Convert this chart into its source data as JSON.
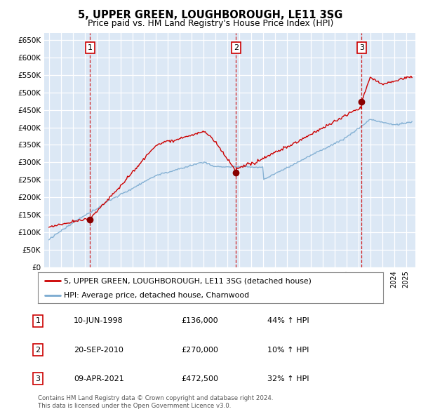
{
  "title": "5, UPPER GREEN, LOUGHBOROUGH, LE11 3SG",
  "subtitle": "Price paid vs. HM Land Registry's House Price Index (HPI)",
  "ylim": [
    0,
    670000
  ],
  "yticks": [
    0,
    50000,
    100000,
    150000,
    200000,
    250000,
    300000,
    350000,
    400000,
    450000,
    500000,
    550000,
    600000,
    650000
  ],
  "ytick_labels": [
    "£0",
    "£50K",
    "£100K",
    "£150K",
    "£200K",
    "£250K",
    "£300K",
    "£350K",
    "£400K",
    "£450K",
    "£500K",
    "£550K",
    "£600K",
    "£650K"
  ],
  "background_color": "#dce8f5",
  "grid_color": "#ffffff",
  "sale_color": "#cc0000",
  "hpi_color": "#7aaad0",
  "dashed_line_color": "#cc0000",
  "marker_color": "#880000",
  "transactions": [
    {
      "date": 1998.44,
      "price": 136000,
      "label": "1"
    },
    {
      "date": 2010.72,
      "price": 270000,
      "label": "2"
    },
    {
      "date": 2021.27,
      "price": 472500,
      "label": "3"
    }
  ],
  "legend_sale_label": "5, UPPER GREEN, LOUGHBOROUGH, LE11 3SG (detached house)",
  "legend_hpi_label": "HPI: Average price, detached house, Charnwood",
  "table_rows": [
    {
      "num": "1",
      "date": "10-JUN-1998",
      "price": "£136,000",
      "change": "44% ↑ HPI"
    },
    {
      "num": "2",
      "date": "20-SEP-2010",
      "price": "£270,000",
      "change": "10% ↑ HPI"
    },
    {
      "num": "3",
      "date": "09-APR-2021",
      "price": "£472,500",
      "change": "32% ↑ HPI"
    }
  ],
  "footer": [
    "Contains HM Land Registry data © Crown copyright and database right 2024.",
    "This data is licensed under the Open Government Licence v3.0."
  ]
}
